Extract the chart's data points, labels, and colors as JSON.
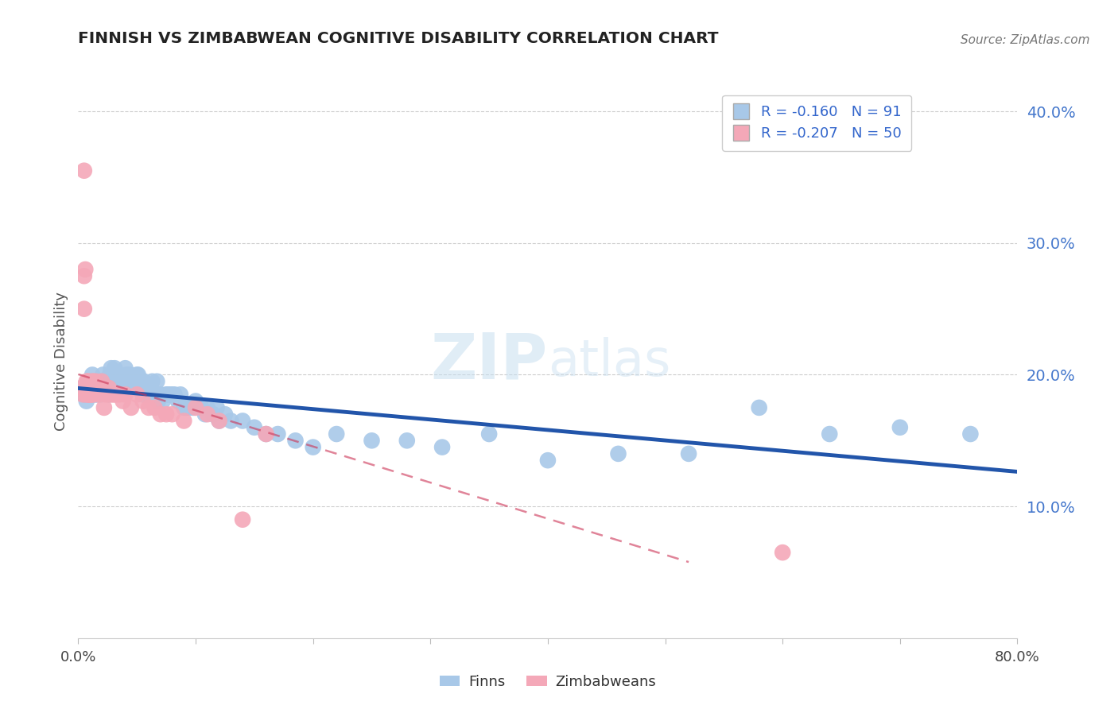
{
  "title": "FINNISH VS ZIMBABWEAN COGNITIVE DISABILITY CORRELATION CHART",
  "source": "Source: ZipAtlas.com",
  "ylabel": "Cognitive Disability",
  "xlim": [
    0.0,
    0.8
  ],
  "ylim": [
    0.0,
    0.42
  ],
  "yticks": [
    0.1,
    0.2,
    0.3,
    0.4
  ],
  "ytick_labels": [
    "10.0%",
    "20.0%",
    "30.0%",
    "40.0%"
  ],
  "finn_R": -0.16,
  "finn_N": 91,
  "zimb_R": -0.207,
  "zimb_N": 50,
  "finn_color": "#a8c8e8",
  "zimb_color": "#f4a8b8",
  "finn_line_color": "#2255aa",
  "zimb_line_color": "#cc3355",
  "watermark_zip": "ZIP",
  "watermark_atlas": "atlas",
  "background_color": "#ffffff",
  "finn_x": [
    0.003,
    0.005,
    0.006,
    0.007,
    0.008,
    0.009,
    0.01,
    0.01,
    0.011,
    0.012,
    0.013,
    0.014,
    0.015,
    0.016,
    0.017,
    0.018,
    0.019,
    0.02,
    0.021,
    0.022,
    0.023,
    0.025,
    0.026,
    0.027,
    0.028,
    0.03,
    0.031,
    0.032,
    0.033,
    0.035,
    0.036,
    0.038,
    0.04,
    0.041,
    0.042,
    0.044,
    0.045,
    0.046,
    0.048,
    0.05,
    0.051,
    0.053,
    0.055,
    0.056,
    0.058,
    0.06,
    0.062,
    0.063,
    0.065,
    0.067,
    0.068,
    0.07,
    0.072,
    0.075,
    0.076,
    0.078,
    0.08,
    0.082,
    0.085,
    0.087,
    0.09,
    0.092,
    0.095,
    0.098,
    0.1,
    0.105,
    0.108,
    0.11,
    0.115,
    0.118,
    0.12,
    0.125,
    0.13,
    0.14,
    0.15,
    0.16,
    0.17,
    0.185,
    0.2,
    0.22,
    0.25,
    0.28,
    0.31,
    0.35,
    0.4,
    0.46,
    0.52,
    0.58,
    0.64,
    0.7,
    0.76
  ],
  "finn_y": [
    0.19,
    0.185,
    0.185,
    0.18,
    0.185,
    0.185,
    0.19,
    0.185,
    0.195,
    0.2,
    0.19,
    0.185,
    0.195,
    0.185,
    0.19,
    0.195,
    0.185,
    0.195,
    0.2,
    0.195,
    0.19,
    0.195,
    0.185,
    0.2,
    0.205,
    0.195,
    0.205,
    0.19,
    0.2,
    0.195,
    0.2,
    0.195,
    0.205,
    0.2,
    0.19,
    0.2,
    0.19,
    0.195,
    0.19,
    0.2,
    0.2,
    0.195,
    0.185,
    0.195,
    0.19,
    0.185,
    0.19,
    0.195,
    0.185,
    0.195,
    0.18,
    0.185,
    0.18,
    0.185,
    0.185,
    0.185,
    0.185,
    0.185,
    0.18,
    0.185,
    0.175,
    0.175,
    0.175,
    0.175,
    0.18,
    0.175,
    0.17,
    0.175,
    0.17,
    0.175,
    0.165,
    0.17,
    0.165,
    0.165,
    0.16,
    0.155,
    0.155,
    0.15,
    0.145,
    0.155,
    0.15,
    0.15,
    0.145,
    0.155,
    0.135,
    0.14,
    0.14,
    0.175,
    0.155,
    0.16,
    0.155
  ],
  "zimb_x": [
    0.003,
    0.004,
    0.005,
    0.005,
    0.005,
    0.006,
    0.007,
    0.007,
    0.008,
    0.008,
    0.009,
    0.009,
    0.01,
    0.01,
    0.011,
    0.011,
    0.012,
    0.012,
    0.013,
    0.013,
    0.014,
    0.015,
    0.016,
    0.017,
    0.018,
    0.02,
    0.022,
    0.024,
    0.026,
    0.028,
    0.03,
    0.032,
    0.035,
    0.038,
    0.04,
    0.045,
    0.05,
    0.055,
    0.06,
    0.065,
    0.07,
    0.075,
    0.08,
    0.09,
    0.1,
    0.11,
    0.12,
    0.14,
    0.16,
    0.6
  ],
  "zimb_y": [
    0.19,
    0.185,
    0.355,
    0.275,
    0.25,
    0.28,
    0.195,
    0.185,
    0.195,
    0.185,
    0.195,
    0.185,
    0.19,
    0.185,
    0.185,
    0.185,
    0.195,
    0.19,
    0.195,
    0.185,
    0.19,
    0.195,
    0.19,
    0.185,
    0.19,
    0.195,
    0.175,
    0.185,
    0.19,
    0.185,
    0.185,
    0.185,
    0.185,
    0.18,
    0.185,
    0.175,
    0.185,
    0.18,
    0.175,
    0.175,
    0.17,
    0.17,
    0.17,
    0.165,
    0.175,
    0.17,
    0.165,
    0.09,
    0.155,
    0.065
  ]
}
